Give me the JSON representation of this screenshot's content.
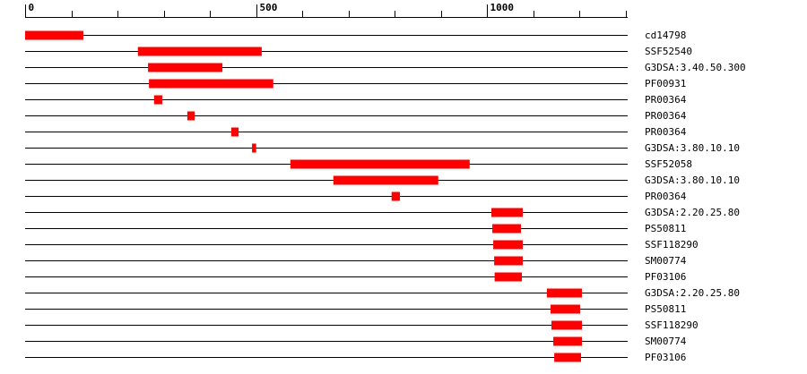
{
  "chart_data": {
    "type": "range",
    "categories": [
      "cd14798",
      "SSF52540",
      "G3DSA:3.40.50.300",
      "PF00931",
      "PR00364",
      "PR00364",
      "PR00364",
      "G3DSA:3.80.10.10",
      "SSF52058",
      "G3DSA:3.80.10.10",
      "PR00364",
      "G3DSA:2.20.25.80",
      "PS50811",
      "SSF118290",
      "SM00774",
      "PF03106",
      "G3DSA:2.20.25.80",
      "PS50811",
      "SSF118290",
      "SM00774",
      "PF03106"
    ],
    "starts": [
      0,
      244,
      266,
      268,
      279,
      351,
      446,
      491,
      574,
      667,
      793,
      1009,
      1011,
      1013,
      1015,
      1016,
      1129,
      1137,
      1139,
      1143,
      1145
    ],
    "ends": [
      126,
      512,
      427,
      537,
      297,
      367,
      462,
      500,
      962,
      894,
      811,
      1077,
      1073,
      1077,
      1077,
      1075,
      1205,
      1201,
      1205,
      1205,
      1203
    ],
    "color": "#ff0000",
    "xlim": [
      0,
      1300
    ],
    "xticks": [
      0,
      500,
      1000
    ],
    "minor_xticks": [
      100,
      200,
      300,
      400,
      600,
      700,
      800,
      900,
      1100,
      1200,
      1300
    ]
  }
}
